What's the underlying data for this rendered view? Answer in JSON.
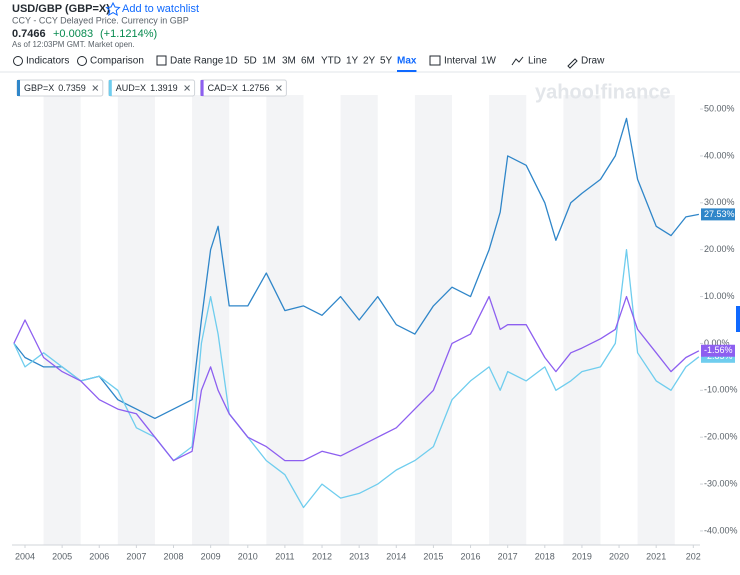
{
  "header": {
    "symbol": "USD/GBP (GBP=X)",
    "watchlist": "Add to watchlist",
    "source": "CCY - CCY Delayed Price. Currency in GBP",
    "price": "0.7466",
    "change": "+0.0083",
    "change_percent": "(+1.1214%)",
    "timestamp": "As of 12:03PM GMT. Market open."
  },
  "toolbar": {
    "indicators": "Indicators",
    "comparison": "Comparison",
    "date_range": "Date Range",
    "ranges": [
      "1D",
      "5D",
      "1M",
      "3M",
      "6M",
      "YTD",
      "1Y",
      "2Y",
      "5Y",
      "Max"
    ],
    "interval_label": "Interval",
    "interval": "1W",
    "chart_type": "Line",
    "draw": "Draw"
  },
  "chart_data": {
    "type": "line",
    "watermark": "yahoo!finance",
    "x": [
      2003.7,
      2004.0,
      2004.5,
      2005.0,
      2005.5,
      2006.0,
      2006.5,
      2007.0,
      2007.5,
      2008.0,
      2008.5,
      2008.75,
      2009.0,
      2009.2,
      2009.5,
      2010.0,
      2010.5,
      2011.0,
      2011.5,
      2012.0,
      2012.5,
      2013.0,
      2013.5,
      2014.0,
      2014.5,
      2015.0,
      2015.5,
      2016.0,
      2016.5,
      2016.8,
      2017.0,
      2017.5,
      2018.0,
      2018.3,
      2018.7,
      2019.0,
      2019.5,
      2019.9,
      2020.2,
      2020.5,
      2021.0,
      2021.4,
      2021.8,
      2022.15
    ],
    "series": [
      {
        "name": "GBP=X",
        "last": "0.7359",
        "color": "#2f86c9",
        "value_label": "27.53%",
        "values": [
          0,
          -3,
          -5,
          -5,
          -8,
          -7,
          -12,
          -14,
          -16,
          -14,
          -12,
          5,
          20,
          25,
          8,
          8,
          15,
          7,
          8,
          6,
          10,
          5,
          10,
          4,
          2,
          8,
          12,
          10,
          20,
          28,
          40,
          38,
          30,
          22,
          30,
          32,
          35,
          40,
          48,
          35,
          25,
          23,
          27,
          27.53
        ]
      },
      {
        "name": "AUD=X",
        "last": "1.3919",
        "color": "#6fcdee",
        "value_label": "-2.85%",
        "values": [
          0,
          -5,
          -2,
          -5,
          -8,
          -7,
          -10,
          -18,
          -20,
          -25,
          -22,
          0,
          10,
          2,
          -15,
          -20,
          -25,
          -28,
          -35,
          -30,
          -33,
          -32,
          -30,
          -27,
          -25,
          -22,
          -12,
          -8,
          -5,
          -10,
          -6,
          -8,
          -5,
          -10,
          -8,
          -6,
          -5,
          0,
          20,
          -2,
          -8,
          -10,
          -5,
          -2.85
        ]
      },
      {
        "name": "CAD=X",
        "last": "1.2756",
        "color": "#8d5ff0",
        "value_label": "-1.56%",
        "values": [
          0,
          5,
          -3,
          -6,
          -8,
          -12,
          -14,
          -15,
          -20,
          -25,
          -23,
          -10,
          -5,
          -10,
          -15,
          -20,
          -22,
          -25,
          -25,
          -23,
          -24,
          -22,
          -20,
          -18,
          -14,
          -10,
          0,
          2,
          10,
          3,
          4,
          4,
          -3,
          -6,
          -2,
          -1,
          1,
          3,
          10,
          3,
          -2,
          -6,
          -3,
          -1.56
        ]
      }
    ],
    "xlim": [
      2003.65,
      2022.18
    ],
    "xticks": [
      2004,
      2005,
      2006,
      2007,
      2008,
      2009,
      2010,
      2011,
      2012,
      2013,
      2014,
      2015,
      2016,
      2017,
      2018,
      2019,
      2020,
      2021,
      {
        "value": 2022,
        "label": "202"
      }
    ],
    "ylim": [
      -43,
      53
    ],
    "yticks": [
      {
        "value": 50,
        "label": "50.00%"
      },
      {
        "value": 40,
        "label": "40.00%"
      },
      {
        "value": 30,
        "label": "30.00%"
      },
      {
        "value": 20,
        "label": "20.00%"
      },
      {
        "value": 10,
        "label": "10.00%"
      },
      {
        "value": 0,
        "label": "0.00%"
      },
      {
        "value": -10,
        "label": "-10.00%"
      },
      {
        "value": -20,
        "label": "-20.00%"
      },
      {
        "value": -30,
        "label": "-30.00%"
      },
      {
        "value": -40,
        "label": "-40.00%"
      }
    ],
    "grid": false,
    "year_bands": true
  }
}
